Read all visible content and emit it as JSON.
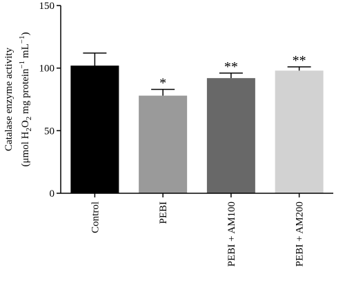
{
  "chart_data": {
    "type": "bar",
    "categories": [
      "Control",
      "PEBI",
      "PEBI + AM100",
      "PEBI + AM200"
    ],
    "values": [
      102,
      78,
      92,
      98
    ],
    "errors": [
      10,
      5,
      4,
      3
    ],
    "significance": [
      "",
      "*",
      "**",
      "**"
    ],
    "bar_colors": [
      "#000000",
      "#9a9a9a",
      "#686868",
      "#d2d2d2"
    ],
    "ylabel_line1": "Catalase enzyme activity",
    "ylabel_line2": {
      "prefix": "(μmol H",
      "sub": "2",
      "mid1": "O",
      "sub2": "2",
      "mid2": " mg protein",
      "sup": "−1",
      "mid3": " mL",
      "sup2": "−1",
      "suffix": ")"
    },
    "ylim": [
      0,
      150
    ],
    "yticks": [
      0,
      50,
      100,
      150
    ],
    "grid": false
  }
}
